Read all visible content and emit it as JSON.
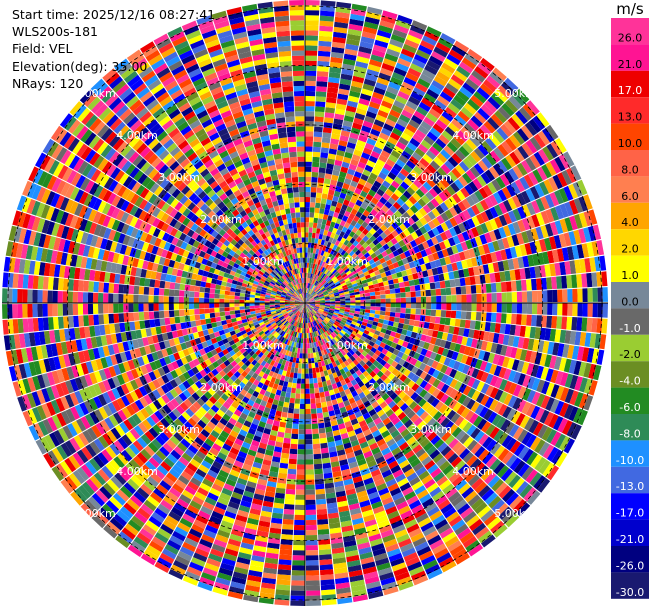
{
  "info": {
    "start_time": "Start time: 2025/12/16 08:27:41",
    "station": "WLS200s-181",
    "field": "Field: VEL",
    "elevation": "Elevation(deg): 35.00",
    "nrays": "NRays: 120"
  },
  "colorbar": {
    "unit": "m/s",
    "bands": [
      {
        "label": "26.0",
        "color": "#ff3399"
      },
      {
        "label": "21.0",
        "color": "#ff1493"
      },
      {
        "label": "17.0",
        "color": "#ee0000"
      },
      {
        "label": "13.0",
        "color": "#ff2a2a"
      },
      {
        "label": "10.0",
        "color": "#ff4500"
      },
      {
        "label": "8.0",
        "color": "#ff6347"
      },
      {
        "label": "6.0",
        "color": "#ff7f50"
      },
      {
        "label": "4.0",
        "color": "#ffa500"
      },
      {
        "label": "2.0",
        "color": "#ffd700"
      },
      {
        "label": "1.0",
        "color": "#ffff00"
      },
      {
        "label": "0.0",
        "color": "#778899"
      },
      {
        "label": "-1.0",
        "color": "#696969"
      },
      {
        "label": "-2.0",
        "color": "#9acd32"
      },
      {
        "label": "-4.0",
        "color": "#6b8e23"
      },
      {
        "label": "-6.0",
        "color": "#228b22"
      },
      {
        "label": "-8.0",
        "color": "#2e8b57"
      },
      {
        "label": "-10.0",
        "color": "#1e90ff"
      },
      {
        "label": "-13.0",
        "color": "#4169e1"
      },
      {
        "label": "-17.0",
        "color": "#0000ff"
      },
      {
        "label": "-21.0",
        "color": "#0000cd"
      },
      {
        "label": "-26.0",
        "color": "#000080"
      },
      {
        "label": "-30.0",
        "color": "#191970"
      }
    ]
  },
  "chart_data": {
    "type": "heatmap",
    "field": "VEL",
    "nrays": 120,
    "range_rings": [
      {
        "label": "1.00km",
        "km": 1
      },
      {
        "label": "2.00km",
        "km": 2
      },
      {
        "label": "3.00km",
        "km": 3
      },
      {
        "label": "4.00km",
        "km": 4
      },
      {
        "label": "5.00km",
        "km": 5
      }
    ],
    "max_range_km": 5.1,
    "velocity_range": [
      -30,
      26
    ]
  }
}
